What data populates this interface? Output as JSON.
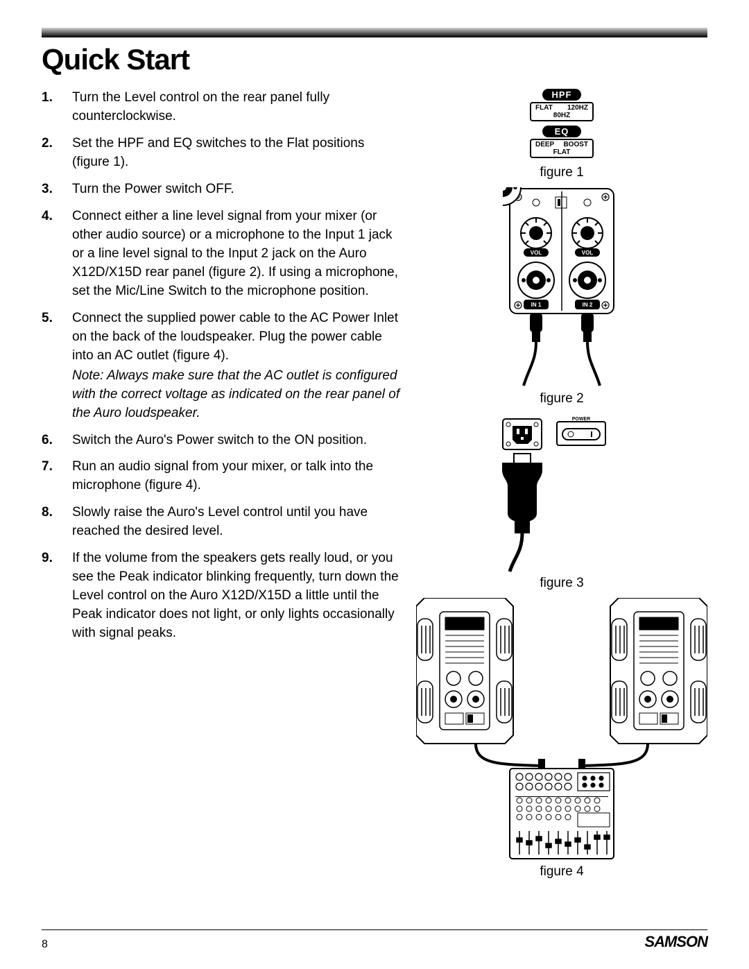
{
  "title": "Quick Start",
  "steps": [
    {
      "n": "1.",
      "text": "Turn the Level control on the rear panel fully counterclockwise."
    },
    {
      "n": "2.",
      "text": "Set the HPF and EQ switches to the Flat positions (figure 1)."
    },
    {
      "n": "3.",
      "text": "Turn the Power switch OFF."
    },
    {
      "n": "4.",
      "text": "Connect either a line level signal from your mixer (or other audio source) or a microphone to the Input 1 jack or a line level signal to the Input 2 jack on the Auro X12D/X15D rear panel (figure 2). If using a microphone, set the Mic/Line Switch to the microphone position."
    },
    {
      "n": "5.",
      "text": "Connect the supplied power cable to the AC Power Inlet on the back of the loudspeaker. Plug the power cable into an AC outlet (figure 4).",
      "note": "Note: Always make sure that the AC outlet is configured with the correct voltage as indicated on the rear panel of the Auro loudspeaker."
    },
    {
      "n": "6.",
      "text": "Switch the Auro's Power switch to the ON position."
    },
    {
      "n": "7.",
      "text": "Run an audio signal from your mixer, or talk into the microphone (figure 4)."
    },
    {
      "n": "8.",
      "text": "Slowly raise the Auro's Level control until you have reached the desired level."
    },
    {
      "n": "9.",
      "text": "If the volume from the speakers gets really loud, or you see the Peak indicator blinking frequently, turn down the Level control on the Auro X12D/X15D a little until the Peak indicator does not light, or only lights occasionally with signal peaks."
    }
  ],
  "figures": {
    "f1": {
      "caption": "figure 1",
      "hpf": {
        "label": "HPF",
        "left": "FLAT",
        "right": "120HZ",
        "center": "80HZ"
      },
      "eq": {
        "label": "EQ",
        "left": "DEEP",
        "right": "BOOST",
        "center": "FLAT"
      }
    },
    "f2": {
      "caption": "figure 2",
      "vol": "VOL",
      "in1": "IN 1",
      "in2": "IN 2"
    },
    "f3": {
      "caption": "figure 3",
      "power": "POWER"
    },
    "f4": {
      "caption": "figure 4"
    }
  },
  "footer": {
    "page": "8",
    "brand": "SAMSON"
  },
  "colors": {
    "black": "#000000",
    "white": "#ffffff",
    "rule_grad_top": "#d0d0d0"
  }
}
